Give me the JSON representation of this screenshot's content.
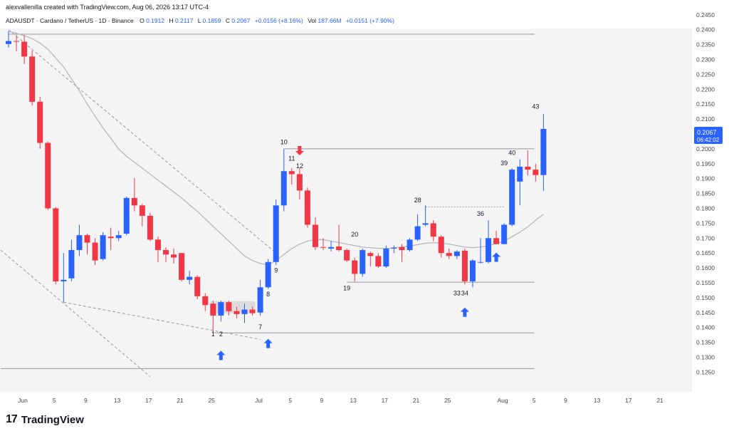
{
  "header": {
    "attribution": "alexvallenilla created with TradingView.com, Aug 06, 2026 13:17 UTC-4",
    "symbol_line": "ADAUSDT · Cardano / TetherUS · 1D · Binance",
    "ohlc": {
      "o_label": "O",
      "o": "0.1912",
      "h_label": "H",
      "h": "0.2117",
      "l_label": "L",
      "l": "0.1859",
      "c_label": "C",
      "c": "0.2067",
      "change": "+0.0156 (+8.16%)",
      "vol_label": "Vol",
      "vol": "187.66M",
      "vol_change": "+0.0151 (+7.90%)"
    }
  },
  "footer": {
    "logo_text": "TradingView",
    "logo_mark": "17"
  },
  "price_tag": {
    "price": "0.2067",
    "countdown": "06:42:02"
  },
  "colors": {
    "up": "#2962ff",
    "down": "#f23645",
    "ma": "#b2b5be",
    "level": "#9598a1",
    "text": "#131722",
    "axis_text": "#434651"
  },
  "chart_data": {
    "type": "candlestick",
    "ylim": [
      0.1215,
      0.2452
    ],
    "y_ticks": [
      "0.2450",
      "0.2400",
      "0.2350",
      "0.2300",
      "0.2250",
      "0.2200",
      "0.2150",
      "0.2100",
      "0.2050",
      "0.2000",
      "0.1950",
      "0.1900",
      "0.1850",
      "0.1800",
      "0.1750",
      "0.1700",
      "0.1650",
      "0.1600",
      "0.1550",
      "0.1500",
      "0.1450",
      "0.1400",
      "0.1350",
      "0.1300",
      "0.1250"
    ],
    "x_ticks": [
      {
        "label": "Jun",
        "day": 0
      },
      {
        "label": "5",
        "day": 4
      },
      {
        "label": "9",
        "day": 8
      },
      {
        "label": "13",
        "day": 12
      },
      {
        "label": "17",
        "day": 16
      },
      {
        "label": "21",
        "day": 20
      },
      {
        "label": "25",
        "day": 24
      },
      {
        "label": "Jul",
        "day": 30
      },
      {
        "label": "5",
        "day": 34
      },
      {
        "label": "9",
        "day": 38
      },
      {
        "label": "13",
        "day": 42
      },
      {
        "label": "17",
        "day": 46
      },
      {
        "label": "21",
        "day": 50
      },
      {
        "label": "25",
        "day": 54
      },
      {
        "label": "Aug",
        "day": 61
      },
      {
        "label": "5",
        "day": 65
      },
      {
        "label": "9",
        "day": 69
      },
      {
        "label": "13",
        "day": 73
      },
      {
        "label": "17",
        "day": 77
      },
      {
        "label": "21",
        "day": 81
      }
    ],
    "candles": [
      {
        "o": 0.2352,
        "h": 0.2395,
        "l": 0.234,
        "c": 0.2362
      },
      {
        "o": 0.2362,
        "h": 0.2382,
        "l": 0.2328,
        "c": 0.236
      },
      {
        "o": 0.236,
        "h": 0.2382,
        "l": 0.2285,
        "c": 0.231
      },
      {
        "o": 0.231,
        "h": 0.233,
        "l": 0.2145,
        "c": 0.2158
      },
      {
        "o": 0.2158,
        "h": 0.2175,
        "l": 0.2,
        "c": 0.202
      },
      {
        "o": 0.202,
        "h": 0.2025,
        "l": 0.1795,
        "c": 0.18
      },
      {
        "o": 0.18,
        "h": 0.1805,
        "l": 0.1545,
        "c": 0.1555
      },
      {
        "o": 0.1555,
        "h": 0.165,
        "l": 0.1485,
        "c": 0.156
      },
      {
        "o": 0.1565,
        "h": 0.1695,
        "l": 0.1555,
        "c": 0.166
      },
      {
        "o": 0.166,
        "h": 0.1745,
        "l": 0.164,
        "c": 0.171
      },
      {
        "o": 0.171,
        "h": 0.1715,
        "l": 0.1645,
        "c": 0.1685
      },
      {
        "o": 0.1685,
        "h": 0.17,
        "l": 0.161,
        "c": 0.1625
      },
      {
        "o": 0.163,
        "h": 0.172,
        "l": 0.1625,
        "c": 0.171
      },
      {
        "o": 0.1705,
        "h": 0.1735,
        "l": 0.166,
        "c": 0.17
      },
      {
        "o": 0.17,
        "h": 0.1725,
        "l": 0.169,
        "c": 0.171
      },
      {
        "o": 0.1715,
        "h": 0.184,
        "l": 0.171,
        "c": 0.1835
      },
      {
        "o": 0.1835,
        "h": 0.1902,
        "l": 0.179,
        "c": 0.181
      },
      {
        "o": 0.181,
        "h": 0.1815,
        "l": 0.174,
        "c": 0.1775
      },
      {
        "o": 0.1775,
        "h": 0.1785,
        "l": 0.169,
        "c": 0.1695
      },
      {
        "o": 0.1695,
        "h": 0.1705,
        "l": 0.162,
        "c": 0.166
      },
      {
        "o": 0.166,
        "h": 0.167,
        "l": 0.162,
        "c": 0.1645
      },
      {
        "o": 0.1645,
        "h": 0.1665,
        "l": 0.1615,
        "c": 0.1635
      },
      {
        "o": 0.165,
        "h": 0.165,
        "l": 0.1555,
        "c": 0.156
      },
      {
        "o": 0.156,
        "h": 0.159,
        "l": 0.1545,
        "c": 0.157
      },
      {
        "o": 0.157,
        "h": 0.1575,
        "l": 0.1495,
        "c": 0.1505
      },
      {
        "o": 0.1505,
        "h": 0.1515,
        "l": 0.1455,
        "c": 0.1475
      },
      {
        "o": 0.148,
        "h": 0.149,
        "l": 0.1385,
        "c": 0.144
      },
      {
        "o": 0.144,
        "h": 0.149,
        "l": 0.142,
        "c": 0.1485
      },
      {
        "o": 0.1485,
        "h": 0.149,
        "l": 0.144,
        "c": 0.1455
      },
      {
        "o": 0.1455,
        "h": 0.147,
        "l": 0.143,
        "c": 0.1445
      },
      {
        "o": 0.1445,
        "h": 0.148,
        "l": 0.1415,
        "c": 0.146
      },
      {
        "o": 0.146,
        "h": 0.147,
        "l": 0.144,
        "c": 0.1448
      },
      {
        "o": 0.145,
        "h": 0.156,
        "l": 0.144,
        "c": 0.1535
      },
      {
        "o": 0.1535,
        "h": 0.163,
        "l": 0.153,
        "c": 0.162
      },
      {
        "o": 0.162,
        "h": 0.183,
        "l": 0.161,
        "c": 0.181
      },
      {
        "o": 0.181,
        "h": 0.1999,
        "l": 0.179,
        "c": 0.1925
      },
      {
        "o": 0.1925,
        "h": 0.1935,
        "l": 0.188,
        "c": 0.1915
      },
      {
        "o": 0.1915,
        "h": 0.1935,
        "l": 0.183,
        "c": 0.186
      },
      {
        "o": 0.186,
        "h": 0.187,
        "l": 0.1735,
        "c": 0.1745
      },
      {
        "o": 0.1745,
        "h": 0.177,
        "l": 0.166,
        "c": 0.167
      },
      {
        "o": 0.167,
        "h": 0.17,
        "l": 0.166,
        "c": 0.1668
      },
      {
        "o": 0.1665,
        "h": 0.169,
        "l": 0.1655,
        "c": 0.167
      },
      {
        "o": 0.1672,
        "h": 0.1745,
        "l": 0.1655,
        "c": 0.166
      },
      {
        "o": 0.166,
        "h": 0.1665,
        "l": 0.162,
        "c": 0.1625
      },
      {
        "o": 0.1625,
        "h": 0.1635,
        "l": 0.1555,
        "c": 0.158
      },
      {
        "o": 0.158,
        "h": 0.1665,
        "l": 0.157,
        "c": 0.166
      },
      {
        "o": 0.165,
        "h": 0.1655,
        "l": 0.1605,
        "c": 0.164
      },
      {
        "o": 0.164,
        "h": 0.165,
        "l": 0.16,
        "c": 0.1605
      },
      {
        "o": 0.1605,
        "h": 0.1675,
        "l": 0.16,
        "c": 0.1665
      },
      {
        "o": 0.1665,
        "h": 0.1675,
        "l": 0.165,
        "c": 0.1668
      },
      {
        "o": 0.167,
        "h": 0.168,
        "l": 0.162,
        "c": 0.166
      },
      {
        "o": 0.166,
        "h": 0.17,
        "l": 0.1655,
        "c": 0.1695
      },
      {
        "o": 0.1695,
        "h": 0.178,
        "l": 0.169,
        "c": 0.174
      },
      {
        "o": 0.1745,
        "h": 0.181,
        "l": 0.174,
        "c": 0.175
      },
      {
        "o": 0.175,
        "h": 0.176,
        "l": 0.169,
        "c": 0.1705
      },
      {
        "o": 0.1705,
        "h": 0.171,
        "l": 0.1635,
        "c": 0.165
      },
      {
        "o": 0.165,
        "h": 0.1665,
        "l": 0.163,
        "c": 0.164
      },
      {
        "o": 0.164,
        "h": 0.166,
        "l": 0.163,
        "c": 0.1655
      },
      {
        "o": 0.1658,
        "h": 0.1665,
        "l": 0.1545,
        "c": 0.1555
      },
      {
        "o": 0.1555,
        "h": 0.163,
        "l": 0.1535,
        "c": 0.1625
      },
      {
        "o": 0.162,
        "h": 0.17,
        "l": 0.1615,
        "c": 0.162
      },
      {
        "o": 0.162,
        "h": 0.176,
        "l": 0.1615,
        "c": 0.17
      },
      {
        "o": 0.17,
        "h": 0.1725,
        "l": 0.168,
        "c": 0.168
      },
      {
        "o": 0.168,
        "h": 0.175,
        "l": 0.168,
        "c": 0.1745
      },
      {
        "o": 0.1745,
        "h": 0.1935,
        "l": 0.174,
        "c": 0.193
      },
      {
        "o": 0.189,
        "h": 0.1965,
        "l": 0.181,
        "c": 0.194
      },
      {
        "o": 0.194,
        "h": 0.1995,
        "l": 0.191,
        "c": 0.193
      },
      {
        "o": 0.193,
        "h": 0.195,
        "l": 0.189,
        "c": 0.1912
      },
      {
        "o": 0.1912,
        "h": 0.2117,
        "l": 0.1859,
        "c": 0.2067
      }
    ],
    "ma": [
      0.2395,
      0.2388,
      0.238,
      0.237,
      0.2355,
      0.2335,
      0.2305,
      0.2275,
      0.2235,
      0.2195,
      0.215,
      0.211,
      0.207,
      0.2035,
      0.2,
      0.1975,
      0.1955,
      0.1935,
      0.1915,
      0.1895,
      0.1875,
      0.1855,
      0.1835,
      0.1812,
      0.179,
      0.1765,
      0.174,
      0.1715,
      0.169,
      0.1665,
      0.164,
      0.1625,
      0.1615,
      0.161,
      0.1625,
      0.1645,
      0.1665,
      0.168,
      0.169,
      0.1695,
      0.1695,
      0.169,
      0.1685,
      0.168,
      0.1675,
      0.167,
      0.1668,
      0.1666,
      0.1665,
      0.1668,
      0.167,
      0.1674,
      0.1678,
      0.1683,
      0.1685,
      0.1683,
      0.168,
      0.1675,
      0.167,
      0.1668,
      0.167,
      0.1675,
      0.1682,
      0.169,
      0.1705,
      0.172,
      0.1738,
      0.176,
      0.178
    ],
    "levels": [
      {
        "price": 0.2385,
        "from_day": 0,
        "to_day": 67
      },
      {
        "price": 0.2,
        "from_day": 35,
        "to_day": 67
      },
      {
        "price": 0.1552,
        "from_day": 43,
        "to_day": 67
      },
      {
        "price": 0.1382,
        "from_day": 26,
        "to_day": 67
      },
      {
        "price": 0.1262,
        "from_day": -1,
        "to_day": 67
      }
    ],
    "dotted_levels": [
      {
        "price": 0.1805,
        "from_day": 53,
        "to_day": 63
      }
    ],
    "dashed_trendlines": [
      {
        "d1": 0,
        "p1": 0.24,
        "d2": 34,
        "p2": 0.165
      },
      {
        "d1": 7,
        "p1": 0.1485,
        "d2": 32,
        "p2": 0.136
      },
      {
        "d1": -1,
        "p1": 0.166,
        "d2": 18,
        "p2": 0.1235
      }
    ],
    "zones": [
      {
        "from_day": 26,
        "to_day": 31,
        "p_top": 0.1488,
        "p_bottom": 0.1448
      }
    ],
    "wave_labels": [
      {
        "text": "1",
        "day": 26,
        "price": 0.137
      },
      {
        "text": "2",
        "day": 27,
        "price": 0.137
      },
      {
        "text": "7",
        "day": 32,
        "price": 0.1395
      },
      {
        "text": "8",
        "day": 33,
        "price": 0.1505
      },
      {
        "text": "9",
        "day": 34,
        "price": 0.1585
      },
      {
        "text": "10",
        "day": 35,
        "price": 0.2015
      },
      {
        "text": "11",
        "day": 36,
        "price": 0.196
      },
      {
        "text": "12",
        "day": 37,
        "price": 0.1935
      },
      {
        "text": "19",
        "day": 43,
        "price": 0.1525
      },
      {
        "text": "20",
        "day": 44,
        "price": 0.1705
      },
      {
        "text": "28",
        "day": 52,
        "price": 0.182
      },
      {
        "text": "33",
        "day": 57,
        "price": 0.1508
      },
      {
        "text": "34",
        "day": 58,
        "price": 0.1508
      },
      {
        "text": "36",
        "day": 60,
        "price": 0.1775
      },
      {
        "text": "39",
        "day": 63,
        "price": 0.1945
      },
      {
        "text": "40",
        "day": 64,
        "price": 0.198
      },
      {
        "text": "43",
        "day": 67,
        "price": 0.2135
      }
    ],
    "up_arrows": [
      {
        "day": 27,
        "price": 0.1305
      },
      {
        "day": 33,
        "price": 0.1345
      },
      {
        "day": 58,
        "price": 0.145
      },
      {
        "day": 62,
        "price": 0.1635
      }
    ],
    "down_arrows": [
      {
        "day": 37,
        "price": 0.1995
      }
    ]
  }
}
